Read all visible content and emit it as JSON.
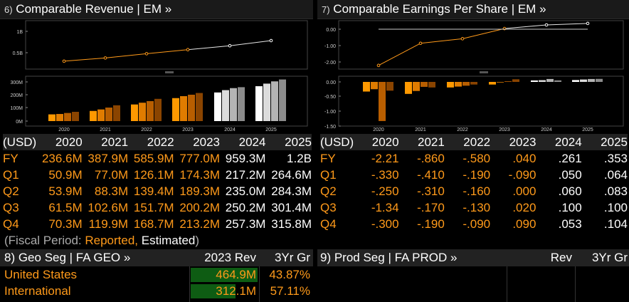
{
  "panel6": {
    "num": "6)",
    "title": "Comparable Revenue | EM »",
    "line_ticks": [
      "1B",
      "0.5B"
    ],
    "bar_ticks": [
      "300M",
      "200M",
      "100M",
      "0M"
    ],
    "years_axis": [
      "2020",
      "2021",
      "2022",
      "2023",
      "2024",
      "2025"
    ],
    "fy_values": [
      236.6,
      387.9,
      585.9,
      777.0,
      959.3,
      1200
    ],
    "quarter_values": [
      [
        50.9,
        53.9,
        61.5,
        70.3
      ],
      [
        77.0,
        88.3,
        102.6,
        119.9
      ],
      [
        126.1,
        139.4,
        151.7,
        168.7
      ],
      [
        174.3,
        189.3,
        200.2,
        213.2
      ],
      [
        217.2,
        235.0,
        250.2,
        257.3
      ],
      [
        264.6,
        284.3,
        301.4,
        315.8
      ]
    ],
    "estimated_from_index": 4,
    "table": {
      "currency": "(USD)",
      "years": [
        "2020",
        "2021",
        "2022",
        "2023",
        "2024",
        "2025"
      ],
      "rows": [
        {
          "label": "FY",
          "values": [
            "236.6M",
            "387.9M",
            "585.9M",
            "777.0M",
            "959.3M",
            "1.2B"
          ]
        },
        {
          "label": "Q1",
          "values": [
            "50.9M",
            "77.0M",
            "126.1M",
            "174.3M",
            "217.2M",
            "264.6M"
          ]
        },
        {
          "label": "Q2",
          "values": [
            "53.9M",
            "88.3M",
            "139.4M",
            "189.3M",
            "235.0M",
            "284.3M"
          ]
        },
        {
          "label": "Q3",
          "values": [
            "61.5M",
            "102.6M",
            "151.7M",
            "200.2M",
            "250.2M",
            "301.4M"
          ]
        },
        {
          "label": "Q4",
          "values": [
            "70.3M",
            "119.9M",
            "168.7M",
            "213.2M",
            "257.3M",
            "315.8M"
          ]
        }
      ]
    }
  },
  "panel7": {
    "num": "7)",
    "title": "Comparable Earnings Per Share | EM »",
    "line_ticks": [
      "0.00",
      "-1.00",
      "-2.00"
    ],
    "bar_ticks": [
      "0.00",
      "-0.50",
      "-1.00",
      "-1.50"
    ],
    "years_axis": [
      "2020",
      "2021",
      "2022",
      "2023",
      "2024",
      "2025"
    ],
    "fy_values": [
      -2.21,
      -0.86,
      -0.58,
      0.04,
      0.261,
      0.353
    ],
    "quarter_values": [
      [
        -0.33,
        -0.25,
        -1.34,
        -0.3
      ],
      [
        -0.41,
        -0.31,
        -0.17,
        -0.19
      ],
      [
        -0.19,
        -0.16,
        -0.13,
        -0.09
      ],
      [
        -0.09,
        0.0,
        0.02,
        0.09
      ],
      [
        0.05,
        0.06,
        0.1,
        0.053
      ],
      [
        0.064,
        0.083,
        0.1,
        0.104
      ]
    ],
    "estimated_from_index": 4,
    "table": {
      "currency": "(USD)",
      "years": [
        "2020",
        "2021",
        "2022",
        "2023",
        "2024",
        "2025"
      ],
      "rows": [
        {
          "label": "FY",
          "values": [
            "-2.21",
            "-.860",
            "-.580",
            ".040",
            ".261",
            ".353"
          ]
        },
        {
          "label": "Q1",
          "values": [
            "-.330",
            "-.410",
            "-.190",
            "-.090",
            ".050",
            ".064"
          ]
        },
        {
          "label": "Q2",
          "values": [
            "-.250",
            "-.310",
            "-.160",
            ".000",
            ".060",
            ".083"
          ]
        },
        {
          "label": "Q3",
          "values": [
            "-1.34",
            "-.170",
            "-.130",
            ".020",
            ".100",
            ".100"
          ]
        },
        {
          "label": "Q4",
          "values": [
            "-.300",
            "-.190",
            "-.090",
            ".090",
            ".053",
            ".104"
          ]
        }
      ]
    }
  },
  "fiscal_period": {
    "prefix": "(Fiscal Period: ",
    "reported": "Reported,",
    "estimated": "Estimated",
    "suffix": ")"
  },
  "panel8": {
    "title": "8) Geo Seg | FA GEO »",
    "col_rev": "2023 Rev",
    "col_gr": "3Yr Gr",
    "rows": [
      {
        "label": "United States",
        "rev": "464.9M",
        "gr": "43.87%",
        "bar_fraction": 1.0
      },
      {
        "label": "International",
        "rev": "312.1M",
        "gr": "57.11%",
        "bar_fraction": 0.67
      }
    ]
  },
  "panel9": {
    "title": "9) Prod Seg | FA PROD »",
    "col_rev": "Rev",
    "col_gr": "3Yr Gr"
  },
  "colors": {
    "orange": "#ff9a1a",
    "bar_green": "#0e5c13",
    "header_bg": "#1a1a1a"
  }
}
